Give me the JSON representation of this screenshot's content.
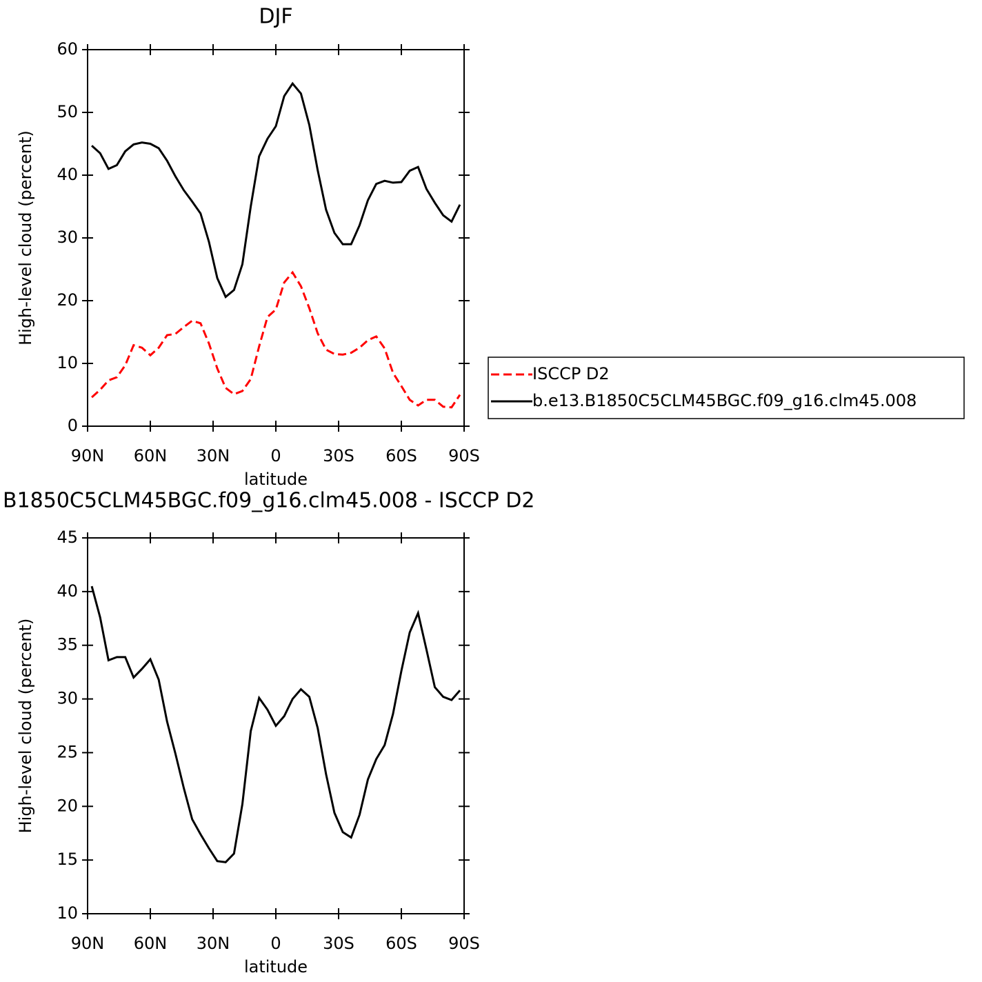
{
  "chart_data": [
    {
      "type": "line",
      "title": "DJF",
      "xlabel": "latitude",
      "ylabel": "High-level cloud (percent)",
      "x": [
        88,
        84,
        80,
        76,
        72,
        68,
        64,
        60,
        56,
        52,
        48,
        44,
        40,
        36,
        32,
        28,
        24,
        20,
        16,
        12,
        8,
        4,
        0,
        -4,
        -8,
        -12,
        -16,
        -20,
        -24,
        -28,
        -32,
        -36,
        -40,
        -44,
        -48,
        -52,
        -56,
        -60,
        -64,
        -68,
        -72,
        -76,
        -80,
        -84,
        -88
      ],
      "series": [
        {
          "name": "ISCCP D2",
          "color": "#ff0000",
          "line_style": "dashed",
          "values": [
            4.6,
            5.8,
            7.3,
            7.8,
            9.7,
            12.9,
            12.5,
            11.3,
            12.5,
            14.5,
            14.7,
            15.8,
            16.8,
            16.4,
            13.2,
            9.2,
            6.1,
            5.1,
            5.6,
            7.5,
            12.7,
            17.4,
            18.6,
            22.9,
            24.5,
            22.3,
            18.8,
            14.8,
            12.2,
            11.5,
            11.4,
            11.7,
            12.5,
            13.7,
            14.3,
            12.4,
            8.5,
            6.4,
            4.2,
            3.3,
            4.2,
            4.2,
            3.1,
            3.0,
            5.0
          ]
        },
        {
          "name": "b.e13.B1850C5CLM45BGC.f09_g16.clm45.008",
          "color": "#000000",
          "line_style": "solid",
          "values": [
            44.7,
            43.5,
            41.0,
            41.6,
            43.8,
            44.9,
            45.2,
            45.0,
            44.3,
            42.3,
            39.8,
            37.6,
            35.8,
            33.9,
            29.4,
            23.6,
            20.6,
            21.7,
            25.8,
            35.0,
            43.0,
            45.8,
            47.8,
            52.6,
            54.6,
            53.0,
            48.0,
            40.8,
            34.5,
            30.8,
            29.0,
            29.0,
            32.0,
            36.0,
            38.6,
            39.1,
            38.8,
            38.9,
            40.7,
            41.3,
            37.8,
            35.6,
            33.6,
            32.6,
            35.3
          ]
        }
      ],
      "xlim": [
        90,
        -90
      ],
      "xticks": [
        {
          "value": 90,
          "label": "90N"
        },
        {
          "value": 60,
          "label": "60N"
        },
        {
          "value": 30,
          "label": "30N"
        },
        0,
        {
          "value": -30,
          "label": "30S"
        },
        {
          "value": -60,
          "label": "60S"
        },
        {
          "value": -90,
          "label": "90S"
        }
      ],
      "ylim": [
        0,
        60
      ],
      "yticks": [
        0,
        10,
        20,
        30,
        40,
        50,
        60
      ],
      "legend": "right"
    },
    {
      "type": "line",
      "title": "B1850C5CLM45BGC.f09_g16.clm45.008 - ISCCP D2",
      "xlabel": "latitude",
      "ylabel": "High-level cloud (percent)",
      "x": [
        88,
        84,
        80,
        76,
        72,
        68,
        64,
        60,
        56,
        52,
        48,
        44,
        40,
        36,
        32,
        28,
        24,
        20,
        16,
        12,
        8,
        4,
        0,
        -4,
        -8,
        -12,
        -16,
        -20,
        -24,
        -28,
        -32,
        -36,
        -40,
        -44,
        -48,
        -52,
        -56,
        -60,
        -64,
        -68,
        -72,
        -76,
        -80,
        -84,
        -88
      ],
      "series": [
        {
          "color": "#000000",
          "line_style": "solid",
          "values": [
            40.5,
            37.6,
            33.6,
            33.9,
            33.9,
            32.0,
            32.8,
            33.7,
            31.8,
            27.9,
            24.9,
            21.7,
            18.8,
            17.4,
            16.1,
            14.9,
            14.8,
            15.6,
            20.2,
            27.0,
            30.1,
            29.0,
            27.5,
            28.4,
            30.0,
            30.9,
            30.2,
            27.3,
            23.0,
            19.4,
            17.6,
            17.1,
            19.2,
            22.5,
            24.4,
            25.7,
            28.6,
            32.6,
            36.2,
            38.0,
            34.6,
            31.1,
            30.2,
            29.9,
            30.8
          ]
        }
      ],
      "xlim": [
        90,
        -90
      ],
      "xticks": [
        {
          "value": 90,
          "label": "90N"
        },
        {
          "value": 60,
          "label": "60N"
        },
        {
          "value": 30,
          "label": "30N"
        },
        0,
        {
          "value": -30,
          "label": "30S"
        },
        {
          "value": -60,
          "label": "60S"
        },
        {
          "value": -90,
          "label": "90S"
        }
      ],
      "ylim": [
        10,
        45
      ],
      "yticks": [
        10,
        15,
        20,
        25,
        30,
        35,
        40,
        45
      ]
    }
  ]
}
